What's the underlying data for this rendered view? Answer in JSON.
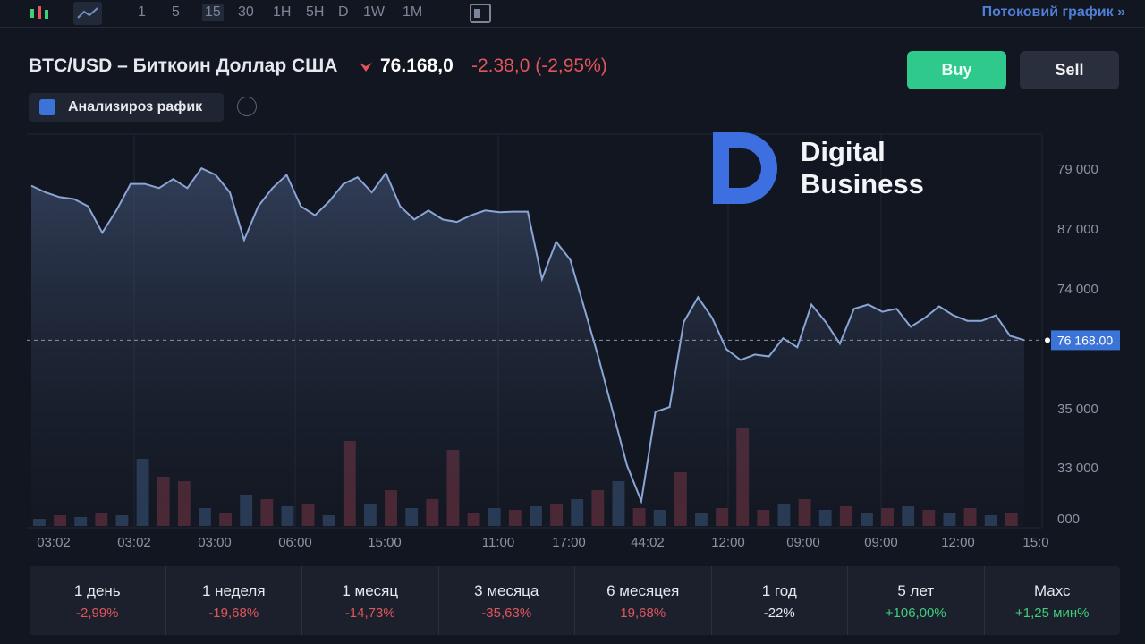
{
  "toolbar": {
    "intervals": [
      "1",
      "5",
      "15",
      "30",
      "1H",
      "5H",
      "D",
      "1W",
      "1M"
    ],
    "stream_link": "Потоковий график »"
  },
  "header": {
    "pair": "BTC/USD – Биткоин Доллар США",
    "price": "76.168,0",
    "change": "-2.38,0 (-2,95%)",
    "buy": "Buy",
    "sell": "Sell",
    "analysis": "Анализироз рафик"
  },
  "logo": {
    "line1": "Digital",
    "line2": "Business"
  },
  "chart_data": {
    "type": "area",
    "color": "#8aa6d6",
    "values": [
      78730,
      78620,
      78540,
      78510,
      78390,
      77950,
      78320,
      78760,
      78760,
      78690,
      78840,
      78690,
      79020,
      78910,
      78620,
      77830,
      78390,
      78690,
      78910,
      78390,
      78240,
      78470,
      78760,
      78870,
      78620,
      78940,
      78390,
      78170,
      78320,
      78170,
      78130,
      78240,
      78320,
      78290,
      78300,
      78300,
      77180,
      77800,
      77500,
      76690,
      75870,
      74980,
      74090,
      73500,
      74980,
      75060,
      76470,
      76880,
      76540,
      76020,
      75840,
      75930,
      75900,
      76200,
      76050,
      76760,
      76470,
      76110,
      76690,
      76760,
      76640,
      76690,
      76390,
      76540,
      76730,
      76580,
      76490,
      76490,
      76580,
      76240,
      76170
    ],
    "ylim": [
      73000,
      80000
    ],
    "y_axis_labels": [
      "79 000",
      "87 000",
      "74 000",
      "35 000",
      "33 000",
      "000"
    ],
    "current_price": {
      "value": 76168,
      "label": "76 168.00"
    },
    "x_axis_labels": [
      "03:02",
      "03:02",
      "03:00",
      "06:00",
      "15:00",
      "11:00",
      "17:00",
      "44:02",
      "12:00",
      "09:00",
      "09:00",
      "12:00",
      "15:0"
    ],
    "volume": {
      "values": [
        8,
        12,
        10,
        15,
        12,
        75,
        55,
        50,
        20,
        15,
        35,
        30,
        22,
        25,
        12,
        95,
        25,
        40,
        20,
        30,
        85,
        15,
        20,
        18,
        22,
        25,
        30,
        40,
        50,
        20,
        18,
        60,
        15,
        20,
        110,
        18,
        25,
        30,
        18,
        22,
        15,
        20,
        22,
        18,
        15,
        20,
        12,
        15
      ],
      "ylim": [
        0,
        120
      ],
      "colors": [
        "#2d4260",
        "#5b2b38",
        "#2d4260",
        "#5b2b38",
        "#2d4260",
        "#2d4260",
        "#5b2b38",
        "#5b2b38",
        "#2d4260",
        "#5b2b38",
        "#2d4260",
        "#5b2b38",
        "#2d4260",
        "#5b2b38",
        "#2d4260",
        "#5b2b38",
        "#2d4260",
        "#5b2b38",
        "#2d4260",
        "#5b2b38",
        "#5b2b38",
        "#5b2b38",
        "#2d4260",
        "#5b2b38",
        "#2d4260",
        "#5b2b38",
        "#2d4260",
        "#5b2b38",
        "#2d4260",
        "#5b2b38",
        "#2d4260",
        "#5b2b38",
        "#2d4260",
        "#5b2b38",
        "#5b2b38",
        "#5b2b38",
        "#2d4260",
        "#5b2b38",
        "#2d4260",
        "#5b2b38",
        "#2d4260",
        "#5b2b38",
        "#2d4260",
        "#5b2b38",
        "#2d4260",
        "#5b2b38",
        "#2d4260",
        "#5b2b38"
      ]
    }
  },
  "periods": [
    {
      "name": "1 день",
      "change": "-2,99%",
      "color": "#e0565b"
    },
    {
      "name": "1 неделя",
      "change": "-19,68%",
      "color": "#e0565b"
    },
    {
      "name": "1 месяц",
      "change": "-14,73%",
      "color": "#e0565b"
    },
    {
      "name": "3 месяца",
      "change": "-35,63%",
      "color": "#e0565b"
    },
    {
      "name": "6 месяцея",
      "change": "19,68%",
      "color": "#e0565b"
    },
    {
      "name": "1 год",
      "change": "-22%",
      "color": "#e6e8ee"
    },
    {
      "name": "5 лет",
      "change": "+106,00%",
      "color": "#3ecf7a"
    },
    {
      "name": "Махс",
      "change": "+1,25 мин%",
      "color": "#3ecf7a"
    }
  ]
}
